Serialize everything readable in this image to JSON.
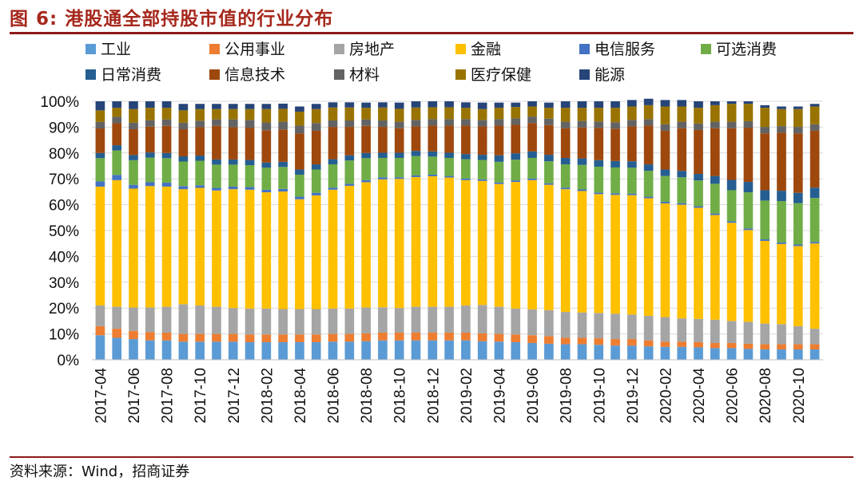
{
  "title": "图 6:  港股通全部持股市值的行业分布",
  "source": "资料来源：Wind，招商证券",
  "colors": {
    "工业": "#5b9bd5",
    "公用事业": "#ed7d31",
    "房地产": "#a5a5a5",
    "金融": "#ffc000",
    "电信服务": "#4472c4",
    "可选消费": "#70ad47",
    "日常消费": "#255e91",
    "信息技术": "#9e480e",
    "材料": "#636363",
    "医疗保健": "#997300",
    "能源": "#264478"
  },
  "chart_data": {
    "type": "bar",
    "stacked": true,
    "ylim": [
      0,
      100
    ],
    "y_ticks": [
      "0%",
      "10%",
      "20%",
      "30%",
      "40%",
      "50%",
      "60%",
      "70%",
      "80%",
      "90%",
      "100%"
    ],
    "x_tick_labels": [
      "2017-04",
      "2017-06",
      "2017-08",
      "2017-10",
      "2017-12",
      "2018-02",
      "2018-04",
      "2018-06",
      "2018-08",
      "2018-10",
      "2018-12",
      "2019-02",
      "2019-04",
      "2019-06",
      "2019-08",
      "2019-10",
      "2019-12",
      "2020-02",
      "2020-04",
      "2020-06",
      "2020-08",
      "2020-10"
    ],
    "legend": [
      "工业",
      "公用事业",
      "房地产",
      "金融",
      "电信服务",
      "可选消费",
      "日常消费",
      "信息技术",
      "材料",
      "医疗保健",
      "能源"
    ],
    "categories": [
      "2017-04",
      "2017-05",
      "2017-06",
      "2017-07",
      "2017-08",
      "2017-09",
      "2017-10",
      "2017-11",
      "2017-12",
      "2018-01",
      "2018-02",
      "2018-03",
      "2018-04",
      "2018-05",
      "2018-06",
      "2018-07",
      "2018-08",
      "2018-09",
      "2018-10",
      "2018-11",
      "2018-12",
      "2019-01",
      "2019-02",
      "2019-03",
      "2019-04",
      "2019-05",
      "2019-06",
      "2019-07",
      "2019-08",
      "2019-09",
      "2019-10",
      "2019-11",
      "2019-12",
      "2020-01",
      "2020-02",
      "2020-03",
      "2020-04",
      "2020-05",
      "2020-06",
      "2020-07",
      "2020-08",
      "2020-09",
      "2020-10",
      "2020-11"
    ],
    "series": [
      {
        "name": "工业",
        "values": [
          9.5,
          8.5,
          8,
          7.5,
          7.5,
          7,
          7,
          7,
          7,
          6.8,
          6.8,
          6.8,
          6.8,
          6.8,
          7,
          7,
          7.2,
          7.5,
          7.5,
          7.5,
          7.5,
          7.5,
          7.5,
          7.2,
          7,
          6.8,
          6.5,
          6.2,
          6,
          6,
          5.8,
          5.5,
          5.5,
          5.2,
          5,
          5,
          4.8,
          4.5,
          4.5,
          4.2,
          4,
          4,
          4,
          4
        ]
      },
      {
        "name": "公用事业",
        "values": [
          3.5,
          3.5,
          3.2,
          3.2,
          3,
          3,
          3,
          3,
          3,
          3,
          3,
          3,
          3,
          3,
          3,
          3,
          3,
          3,
          3,
          3,
          3,
          3,
          3,
          3,
          3,
          3,
          3,
          3,
          2.5,
          2.5,
          2.5,
          2.5,
          2.5,
          2.3,
          2,
          2,
          2,
          2,
          2,
          2,
          2,
          2,
          2,
          2
        ]
      },
      {
        "name": "房地产",
        "values": [
          8,
          8.5,
          9,
          9.5,
          10,
          11.5,
          11,
          10.5,
          10,
          10,
          10,
          9.8,
          9.8,
          9.8,
          9.8,
          9.8,
          10,
          9.8,
          9.5,
          10,
          10,
          10,
          10.5,
          11,
          10.5,
          10,
          10,
          10,
          10,
          9.8,
          9.8,
          9.8,
          9.5,
          9.5,
          9.5,
          9,
          9,
          9,
          8.5,
          8.5,
          8,
          7.8,
          7,
          6
        ]
      },
      {
        "name": "金融",
        "values": [
          46,
          49,
          46,
          47,
          46.5,
          44.5,
          45.5,
          45,
          46,
          46,
          45,
          45.5,
          42.5,
          44,
          46,
          47.5,
          48.5,
          49.5,
          50,
          50.2,
          50.5,
          50,
          48.5,
          48,
          47.5,
          49,
          50,
          48.5,
          47.5,
          47,
          46,
          46,
          46.2,
          45.5,
          44,
          44,
          43,
          40.5,
          38,
          35.5,
          32,
          31,
          31,
          33
        ]
      },
      {
        "name": "电信服务",
        "values": [
          2,
          2,
          1.5,
          1.5,
          1.5,
          1.2,
          1,
          1,
          1,
          1,
          1,
          1,
          1,
          1,
          0.8,
          0.8,
          0.8,
          0.8,
          0.6,
          0.6,
          0.6,
          0.6,
          0.6,
          0.6,
          0.6,
          0.6,
          0.6,
          0.6,
          0.6,
          0.6,
          0.6,
          0.6,
          0.6,
          0.6,
          0.6,
          0.6,
          0.6,
          0.6,
          0.6,
          0.6,
          0.6,
          0.6,
          0.6,
          0.6
        ]
      },
      {
        "name": "可选消费",
        "values": [
          9,
          9.5,
          9.5,
          9.5,
          9.5,
          9.5,
          9.5,
          9,
          8.5,
          8.5,
          8.5,
          8.5,
          8.5,
          9,
          9,
          9,
          8.5,
          7.5,
          7.5,
          7.5,
          7,
          7,
          7.5,
          7.5,
          8,
          8,
          8,
          8.5,
          9,
          9.5,
          10,
          10,
          10,
          10,
          10,
          10,
          10,
          11.5,
          12,
          14,
          15,
          16,
          16,
          17
        ]
      },
      {
        "name": "日常消费",
        "values": [
          2,
          2,
          2,
          2,
          2,
          2,
          2,
          2,
          2,
          2,
          2,
          2,
          2,
          2,
          2,
          2,
          2,
          2,
          2,
          2,
          2,
          2,
          2,
          2,
          2.5,
          2.5,
          2.5,
          2.5,
          2.5,
          2.5,
          2.5,
          2.5,
          2.5,
          2.5,
          2.5,
          2.5,
          2.5,
          3,
          4,
          4,
          4,
          4,
          4,
          4
        ]
      },
      {
        "name": "信息技术",
        "values": [
          9.5,
          8.5,
          10,
          10,
          10.5,
          10.5,
          11,
          13,
          12.5,
          12.5,
          12.5,
          12.5,
          14,
          13,
          12.5,
          11,
          10.5,
          10,
          9.5,
          9.5,
          10,
          10.5,
          11,
          11,
          11.5,
          11,
          11,
          11.5,
          11.5,
          12,
          12.5,
          12.5,
          13.5,
          15,
          15,
          16.5,
          17,
          18.5,
          20,
          21,
          22,
          22.5,
          23,
          22
        ]
      },
      {
        "name": "材料",
        "values": [
          2.5,
          2.5,
          2.5,
          2.5,
          2.5,
          2.5,
          2.5,
          2.5,
          3,
          3,
          3,
          3,
          3,
          3,
          2.5,
          2.5,
          2.5,
          2.5,
          2.5,
          2.5,
          2.5,
          2.5,
          2.5,
          2.5,
          2.5,
          2.5,
          2.5,
          2.5,
          2.5,
          2.5,
          2.5,
          2.5,
          2.5,
          2.5,
          2.5,
          2.5,
          2.5,
          2.5,
          2.5,
          2.5,
          2.5,
          2.5,
          2.5,
          2.5
        ]
      },
      {
        "name": "医疗保健",
        "values": [
          4.5,
          3.5,
          5.3,
          4.8,
          4.5,
          4.8,
          4.5,
          4,
          4,
          4.2,
          5.2,
          5,
          5.4,
          5.4,
          5,
          5,
          4.5,
          5,
          5,
          4.8,
          4.6,
          4.6,
          4.4,
          4.2,
          4.4,
          4.4,
          3.9,
          4.2,
          5.4,
          5.1,
          5.3,
          5.6,
          5.2,
          5.4,
          6.9,
          5.9,
          6.1,
          6.4,
          6.9,
          6.7,
          7.4,
          6.6,
          6.9,
          6.9
        ]
      },
      {
        "name": "能源",
        "values": [
          3.5,
          2.5,
          3,
          2.5,
          2.5,
          2.5,
          2,
          2,
          2,
          2,
          2,
          2,
          2,
          2,
          2,
          2,
          2,
          2,
          2.4,
          2.4,
          2.3,
          2.3,
          2.1,
          2.5,
          2,
          1.7,
          2,
          2,
          2.5,
          2.5,
          2.5,
          2.5,
          2.5,
          2.5,
          2.5,
          2.5,
          2.5,
          1.5,
          1,
          1,
          1,
          1,
          1,
          1
        ]
      }
    ]
  }
}
